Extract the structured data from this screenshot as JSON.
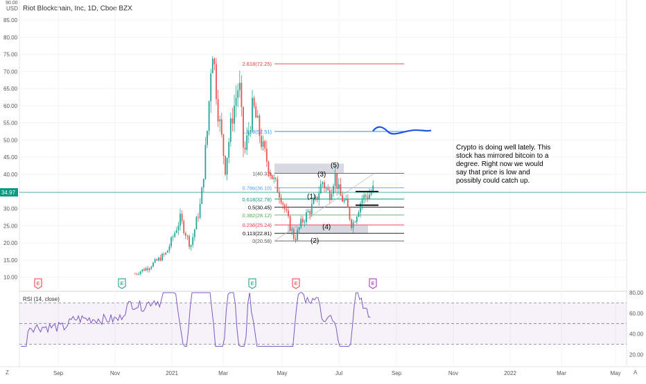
{
  "symbol_title": "Riot Blockchain, Inc, 1D, Cboe BZX",
  "currency": "USD",
  "top_axis_fragment": "90.00",
  "price_axis": [
    "85.00",
    "80.00",
    "75.00",
    "70.00",
    "65.00",
    "60.00",
    "55.00",
    "50.00",
    "45.00",
    "40.00",
    "34.97",
    "30.00",
    "25.00",
    "20.00",
    "15.00",
    "10.00"
  ],
  "rsi_axis": [
    "80.00",
    "60.00",
    "40.00",
    "20.00"
  ],
  "time_axis": [
    "Sep",
    "Nov",
    "2021",
    "Mar",
    "May",
    "Jul",
    "Sep",
    "Nov",
    "2022",
    "Mar",
    "May"
  ],
  "current_price": "34.97",
  "rsi_label": "RSI (14, close)",
  "fib_levels": [
    {
      "label": "2.618(72.25)",
      "color": "#e53935"
    },
    {
      "label": "1.618(52.51)",
      "color": "#2196f3"
    },
    {
      "label": "1(40.32)",
      "color": "#555555"
    },
    {
      "label": "0.786(36.10)",
      "color": "#42a5f5"
    },
    {
      "label": "0.618(32.78)",
      "color": "#089981"
    },
    {
      "label": "0.5(30.45)",
      "color": "#000000"
    },
    {
      "label": "0.382(28.12)",
      "color": "#4caf50"
    },
    {
      "label": "0.236(25.24)",
      "color": "#f23645"
    },
    {
      "label": "0.113(22.81)",
      "color": "#000000"
    },
    {
      "label": "0(20.58)",
      "color": "#555555"
    }
  ],
  "wave_labels": [
    "(1)",
    "(2)",
    "(3)",
    "(4)",
    "(5)"
  ],
  "annotation": [
    "Crypto is doing well lately. This",
    "stock has mirrored bitcoin to a",
    "degree. Right now we would",
    "say that price is low and",
    "possibly could catch up."
  ],
  "earnings_markers": [
    {
      "letter": "E",
      "color": "#f23645"
    },
    {
      "letter": "E",
      "color": "#089981"
    },
    {
      "letter": "E",
      "color": "#089981"
    },
    {
      "letter": "E",
      "color": "#f23645"
    },
    {
      "letter": "E",
      "color": "#9c27b0"
    }
  ],
  "corner_left": "Z",
  "corner_right": "A",
  "colors": {
    "up": "#26a69a",
    "down": "#ef5350",
    "rsi": "#7e57c2",
    "price_line": "#089981"
  }
}
